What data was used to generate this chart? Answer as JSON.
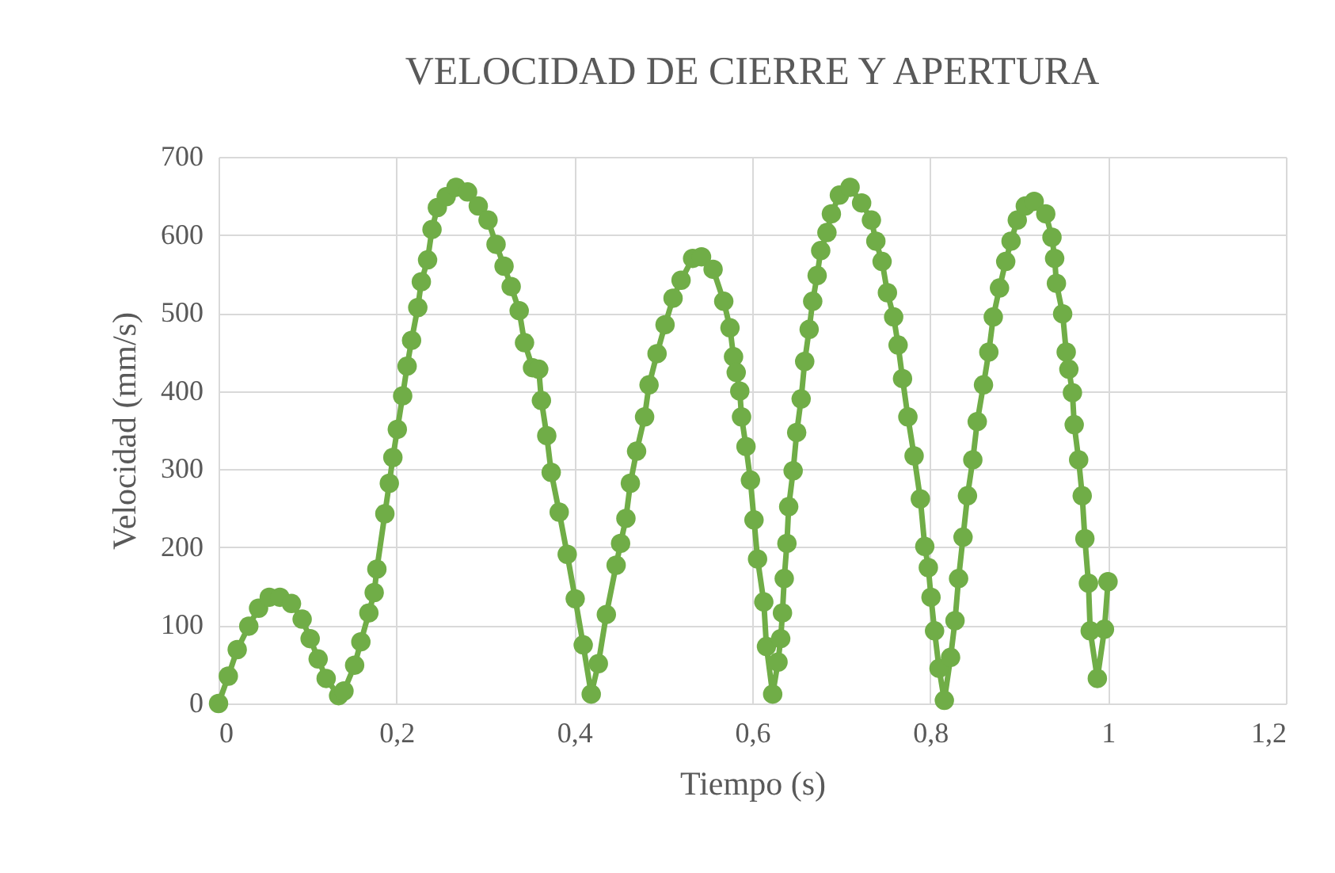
{
  "chart_data": {
    "type": "line",
    "title": "VELOCIDAD DE CIERRE Y APERTURA",
    "xlabel": "Tiempo (s)",
    "ylabel": "Velocidad (mm/s)",
    "x": [
      0,
      0.011,
      0.021,
      0.034,
      0.045,
      0.057,
      0.069,
      0.082,
      0.094,
      0.103,
      0.112,
      0.121,
      0.135,
      0.141,
      0.153,
      0.16,
      0.169,
      0.175,
      0.178,
      0.187,
      0.192,
      0.196,
      0.201,
      0.207,
      0.212,
      0.217,
      0.224,
      0.228,
      0.235,
      0.24,
      0.246,
      0.256,
      0.267,
      0.28,
      0.292,
      0.303,
      0.312,
      0.321,
      0.329,
      0.338,
      0.344,
      0.353,
      0.36,
      0.363,
      0.369,
      0.374,
      0.383,
      0.392,
      0.401,
      0.41,
      0.419,
      0.427,
      0.436,
      0.447,
      0.452,
      0.458,
      0.463,
      0.47,
      0.479,
      0.484,
      0.493,
      0.502,
      0.511,
      0.52,
      0.533,
      0.543,
      0.556,
      0.568,
      0.575,
      0.579,
      0.582,
      0.586,
      0.588,
      0.593,
      0.598,
      0.602,
      0.606,
      0.613,
      0.616,
      0.623,
      0.629,
      0.632,
      0.634,
      0.636,
      0.639,
      0.641,
      0.646,
      0.65,
      0.655,
      0.659,
      0.664,
      0.668,
      0.673,
      0.677,
      0.684,
      0.689,
      0.698,
      0.71,
      0.723,
      0.734,
      0.739,
      0.746,
      0.752,
      0.759,
      0.764,
      0.769,
      0.775,
      0.782,
      0.789,
      0.794,
      0.798,
      0.801,
      0.805,
      0.81,
      0.816,
      0.823,
      0.828,
      0.832,
      0.837,
      0.842,
      0.848,
      0.853,
      0.86,
      0.866,
      0.871,
      0.878,
      0.885,
      0.891,
      0.898,
      0.907,
      0.917,
      0.93,
      0.937,
      0.94,
      0.942,
      0.949,
      0.953,
      0.956,
      0.96,
      0.962,
      0.967,
      0.971,
      0.974,
      0.978,
      0.98,
      0.988,
      0.996,
      1.0
    ],
    "series": [
      {
        "color": "#70ad47",
        "values": [
          0,
          35,
          69,
          99,
          122,
          136,
          136,
          128,
          108,
          83,
          57,
          32,
          10,
          16,
          49,
          79,
          116,
          142,
          172,
          243,
          282,
          315,
          351,
          394,
          432,
          465,
          507,
          540,
          568,
          607,
          635,
          649,
          661,
          655,
          637,
          619,
          588,
          560,
          534,
          503,
          462,
          430,
          428,
          388,
          343,
          296,
          245,
          191,
          134,
          75,
          12,
          51,
          114,
          177,
          205,
          237,
          282,
          323,
          367,
          408,
          448,
          485,
          519,
          542,
          570,
          572,
          556,
          515,
          481,
          444,
          424,
          400,
          367,
          329,
          286,
          235,
          185,
          130,
          73,
          12,
          53,
          83,
          116,
          160,
          205,
          252,
          298,
          347,
          390,
          438,
          479,
          515,
          548,
          580,
          603,
          627,
          651,
          661,
          641,
          619,
          592,
          566,
          526,
          495,
          459,
          416,
          367,
          317,
          262,
          201,
          174,
          136,
          93,
          45,
          4,
          59,
          106,
          160,
          213,
          266,
          312,
          361,
          408,
          450,
          495,
          532,
          566,
          592,
          619,
          637,
          643,
          627,
          597,
          570,
          538,
          499,
          450,
          428,
          398,
          357,
          312,
          266,
          211,
          154,
          93,
          32,
          95,
          156
        ]
      }
    ],
    "xlim": [
      0,
      1.2
    ],
    "xticks": [
      0,
      {
        "value": 0.2,
        "label": "0,2"
      },
      {
        "value": 0.4,
        "label": "0,4"
      },
      {
        "value": 0.6,
        "label": "0,6"
      },
      {
        "value": 0.8,
        "label": "0,8"
      },
      1,
      {
        "value": 1.2,
        "label": "1,2"
      }
    ],
    "ylim": [
      0,
      700
    ],
    "yticks": [
      0,
      100,
      200,
      300,
      400,
      500,
      600,
      700
    ],
    "grid": true,
    "marker": "circle",
    "line_style": "solid"
  }
}
